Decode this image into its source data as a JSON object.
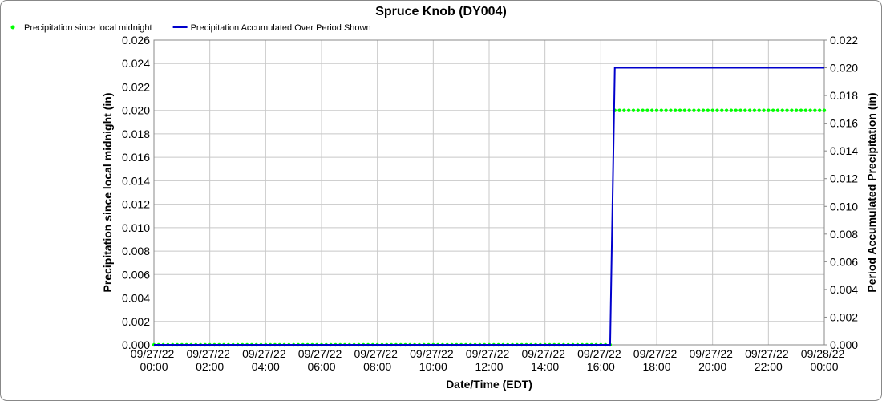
{
  "chart_data": {
    "type": "line",
    "title": "Spruce Knob (DY004)",
    "x_label": "Date/Time (EDT)",
    "y_label": "Precipitation since local midnight (in)",
    "y2_label": "Period Accumulated Precipitation (in)",
    "legend": "upper left",
    "grid": true,
    "xlim": [
      "09/27/22 00:00",
      "09/28/22 00:00"
    ],
    "xticks": [
      "09/27/22 00:00",
      "09/27/22 02:00",
      "09/27/22 04:00",
      "09/27/22 06:00",
      "09/27/22 08:00",
      "09/27/22 10:00",
      "09/27/22 12:00",
      "09/27/22 14:00",
      "09/27/22 16:00",
      "09/27/22 18:00",
      "09/27/22 20:00",
      "09/27/22 22:00",
      "09/28/22 00:00"
    ],
    "ylim": [
      0,
      0.026
    ],
    "yticks": [
      {
        "value": 0,
        "label": "0.000"
      },
      {
        "value": 0.002,
        "label": "0.002"
      },
      {
        "value": 0.004,
        "label": "0.004"
      },
      {
        "value": 0.006,
        "label": "0.006"
      },
      {
        "value": 0.008,
        "label": "0.008"
      },
      {
        "value": 0.01,
        "label": "0.010"
      },
      {
        "value": 0.012,
        "label": "0.012"
      },
      {
        "value": 0.014,
        "label": "0.014"
      },
      {
        "value": 0.016,
        "label": "0.016"
      },
      {
        "value": 0.018,
        "label": "0.018"
      },
      {
        "value": 0.02,
        "label": "0.020"
      },
      {
        "value": 0.022,
        "label": "0.022"
      },
      {
        "value": 0.024,
        "label": "0.024"
      },
      {
        "value": 0.026,
        "label": "0.026"
      }
    ],
    "y2lim": [
      0,
      0.022
    ],
    "y2ticks": [
      {
        "value": 0,
        "label": "0.000"
      },
      {
        "value": 0.002,
        "label": "0.002"
      },
      {
        "value": 0.004,
        "label": "0.004"
      },
      {
        "value": 0.006,
        "label": "0.006"
      },
      {
        "value": 0.008,
        "label": "0.008"
      },
      {
        "value": 0.01,
        "label": "0.010"
      },
      {
        "value": 0.012,
        "label": "0.012"
      },
      {
        "value": 0.014,
        "label": "0.014"
      },
      {
        "value": 0.016,
        "label": "0.016"
      },
      {
        "value": 0.018,
        "label": "0.018"
      },
      {
        "value": 0.02,
        "label": "0.020"
      },
      {
        "value": 0.022,
        "label": "0.022"
      }
    ],
    "x": [
      "09/27/22 00:00",
      "09/27/22 00:10",
      "09/27/22 00:20",
      "09/27/22 00:30",
      "09/27/22 00:40",
      "09/27/22 00:50",
      "09/27/22 01:00",
      "09/27/22 01:10",
      "09/27/22 01:20",
      "09/27/22 01:30",
      "09/27/22 01:40",
      "09/27/22 01:50",
      "09/27/22 02:00",
      "09/27/22 02:10",
      "09/27/22 02:20",
      "09/27/22 02:30",
      "09/27/22 02:40",
      "09/27/22 02:50",
      "09/27/22 03:00",
      "09/27/22 03:10",
      "09/27/22 03:20",
      "09/27/22 03:30",
      "09/27/22 03:40",
      "09/27/22 03:50",
      "09/27/22 04:00",
      "09/27/22 04:10",
      "09/27/22 04:20",
      "09/27/22 04:30",
      "09/27/22 04:40",
      "09/27/22 04:50",
      "09/27/22 05:00",
      "09/27/22 05:10",
      "09/27/22 05:20",
      "09/27/22 05:30",
      "09/27/22 05:40",
      "09/27/22 05:50",
      "09/27/22 06:00",
      "09/27/22 06:10",
      "09/27/22 06:20",
      "09/27/22 06:30",
      "09/27/22 06:40",
      "09/27/22 06:50",
      "09/27/22 07:00",
      "09/27/22 07:10",
      "09/27/22 07:20",
      "09/27/22 07:30",
      "09/27/22 07:40",
      "09/27/22 07:50",
      "09/27/22 08:00",
      "09/27/22 08:10",
      "09/27/22 08:20",
      "09/27/22 08:30",
      "09/27/22 08:40",
      "09/27/22 08:50",
      "09/27/22 09:00",
      "09/27/22 09:10",
      "09/27/22 09:20",
      "09/27/22 09:30",
      "09/27/22 09:40",
      "09/27/22 09:50",
      "09/27/22 10:00",
      "09/27/22 10:10",
      "09/27/22 10:20",
      "09/27/22 10:30",
      "09/27/22 10:40",
      "09/27/22 10:50",
      "09/27/22 11:00",
      "09/27/22 11:10",
      "09/27/22 11:20",
      "09/27/22 11:30",
      "09/27/22 11:40",
      "09/27/22 11:50",
      "09/27/22 12:00",
      "09/27/22 12:10",
      "09/27/22 12:20",
      "09/27/22 12:30",
      "09/27/22 12:40",
      "09/27/22 12:50",
      "09/27/22 13:00",
      "09/27/22 13:10",
      "09/27/22 13:20",
      "09/27/22 13:30",
      "09/27/22 13:40",
      "09/27/22 13:50",
      "09/27/22 14:00",
      "09/27/22 14:10",
      "09/27/22 14:20",
      "09/27/22 14:30",
      "09/27/22 14:40",
      "09/27/22 14:50",
      "09/27/22 15:00",
      "09/27/22 15:10",
      "09/27/22 15:20",
      "09/27/22 15:30",
      "09/27/22 15:40",
      "09/27/22 15:50",
      "09/27/22 16:00",
      "09/27/22 16:10",
      "09/27/22 16:20",
      "09/27/22 16:30",
      "09/27/22 16:40",
      "09/27/22 16:50",
      "09/27/22 17:00",
      "09/27/22 17:10",
      "09/27/22 17:20",
      "09/27/22 17:30",
      "09/27/22 17:40",
      "09/27/22 17:50",
      "09/27/22 18:00",
      "09/27/22 18:10",
      "09/27/22 18:20",
      "09/27/22 18:30",
      "09/27/22 18:40",
      "09/27/22 18:50",
      "09/27/22 19:00",
      "09/27/22 19:10",
      "09/27/22 19:20",
      "09/27/22 19:30",
      "09/27/22 19:40",
      "09/27/22 19:50",
      "09/27/22 20:00",
      "09/27/22 20:10",
      "09/27/22 20:20",
      "09/27/22 20:30",
      "09/27/22 20:40",
      "09/27/22 20:50",
      "09/27/22 21:00",
      "09/27/22 21:10",
      "09/27/22 21:20",
      "09/27/22 21:30",
      "09/27/22 21:40",
      "09/27/22 21:50",
      "09/27/22 22:00",
      "09/27/22 22:10",
      "09/27/22 22:20",
      "09/27/22 22:30",
      "09/27/22 22:40",
      "09/27/22 22:50",
      "09/27/22 23:00",
      "09/27/22 23:10",
      "09/27/22 23:20",
      "09/27/22 23:30",
      "09/27/22 23:40",
      "09/27/22 23:50",
      "09/28/22 00:00"
    ],
    "series": [
      {
        "name": "Precipitation since local midnight",
        "color": "#00ff00",
        "style": "dots",
        "values": [
          0,
          0,
          0,
          0,
          0,
          0,
          0,
          0,
          0,
          0,
          0,
          0,
          0,
          0,
          0,
          0,
          0,
          0,
          0,
          0,
          0,
          0,
          0,
          0,
          0,
          0,
          0,
          0,
          0,
          0,
          0,
          0,
          0,
          0,
          0,
          0,
          0,
          0,
          0,
          0,
          0,
          0,
          0,
          0,
          0,
          0,
          0,
          0,
          0,
          0,
          0,
          0,
          0,
          0,
          0,
          0,
          0,
          0,
          0,
          0,
          0,
          0,
          0,
          0,
          0,
          0,
          0,
          0,
          0,
          0,
          0,
          0,
          0,
          0,
          0,
          0,
          0,
          0,
          0,
          0,
          0,
          0,
          0,
          0,
          0,
          0,
          0,
          0,
          0,
          0,
          0,
          0,
          0,
          0,
          0,
          0,
          0,
          0,
          0,
          0.02,
          0.02,
          0.02,
          0.02,
          0.02,
          0.02,
          0.02,
          0.02,
          0.02,
          0.02,
          0.02,
          0.02,
          0.02,
          0.02,
          0.02,
          0.02,
          0.02,
          0.02,
          0.02,
          0.02,
          0.02,
          0.02,
          0.02,
          0.02,
          0.02,
          0.02,
          0.02,
          0.02,
          0.02,
          0.02,
          0.02,
          0.02,
          0.02,
          0.02,
          0.02,
          0.02,
          0.02,
          0.02,
          0.02,
          0.02,
          0.02,
          0.02,
          0.02,
          0.02,
          0.02,
          0.02
        ]
      },
      {
        "name": "Precipitation Accumulated Over Period Shown",
        "color": "#0000cc",
        "style": "line",
        "axis": "y2",
        "values": [
          0,
          0,
          0,
          0,
          0,
          0,
          0,
          0,
          0,
          0,
          0,
          0,
          0,
          0,
          0,
          0,
          0,
          0,
          0,
          0,
          0,
          0,
          0,
          0,
          0,
          0,
          0,
          0,
          0,
          0,
          0,
          0,
          0,
          0,
          0,
          0,
          0,
          0,
          0,
          0,
          0,
          0,
          0,
          0,
          0,
          0,
          0,
          0,
          0,
          0,
          0,
          0,
          0,
          0,
          0,
          0,
          0,
          0,
          0,
          0,
          0,
          0,
          0,
          0,
          0,
          0,
          0,
          0,
          0,
          0,
          0,
          0,
          0,
          0,
          0,
          0,
          0,
          0,
          0,
          0,
          0,
          0,
          0,
          0,
          0,
          0,
          0,
          0,
          0,
          0,
          0,
          0,
          0,
          0,
          0,
          0,
          0,
          0,
          0,
          0.02,
          0.02,
          0.02,
          0.02,
          0.02,
          0.02,
          0.02,
          0.02,
          0.02,
          0.02,
          0.02,
          0.02,
          0.02,
          0.02,
          0.02,
          0.02,
          0.02,
          0.02,
          0.02,
          0.02,
          0.02,
          0.02,
          0.02,
          0.02,
          0.02,
          0.02,
          0.02,
          0.02,
          0.02,
          0.02,
          0.02,
          0.02,
          0.02,
          0.02,
          0.02,
          0.02,
          0.02,
          0.02,
          0.02,
          0.02,
          0.02,
          0.02,
          0.02,
          0.02,
          0.02,
          0.02
        ]
      }
    ]
  }
}
